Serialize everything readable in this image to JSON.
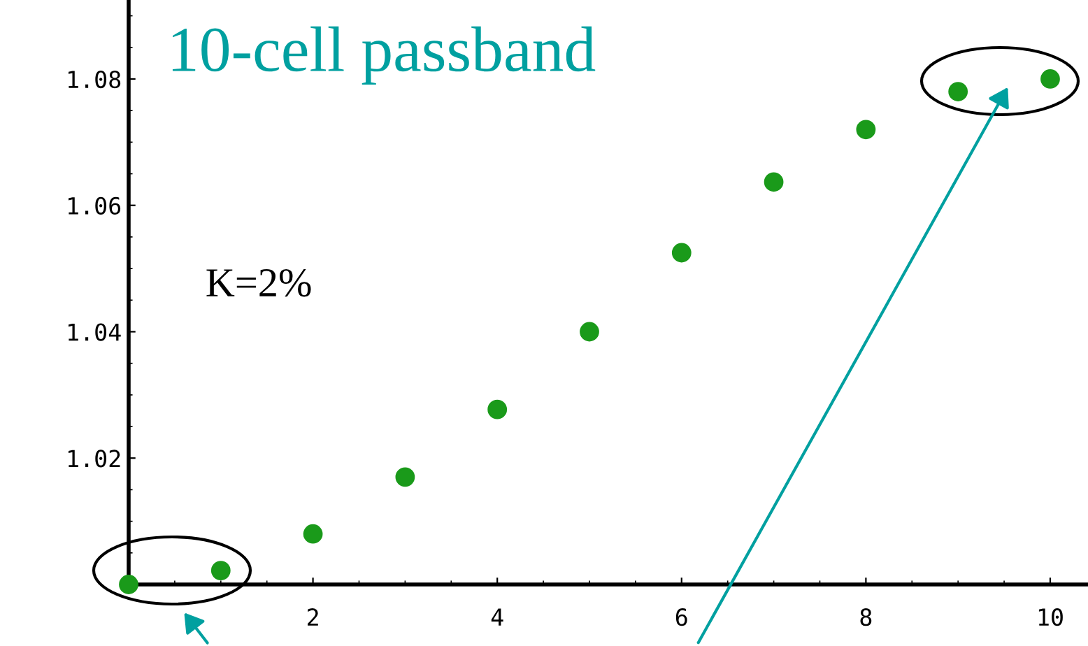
{
  "chart_data": {
    "type": "scatter",
    "annotations": [
      "10-cell passband",
      "K=2%"
    ],
    "x": [
      0,
      1,
      2,
      3,
      4,
      5,
      6,
      7,
      8,
      9,
      10
    ],
    "series": [
      {
        "color": "#1a9a1a",
        "values": [
          1.0,
          1.0022,
          1.008,
          1.017,
          1.0277,
          1.04,
          1.0525,
          1.0637,
          1.072,
          1.078,
          1.08
        ]
      }
    ],
    "xlim": [
      0,
      10.41
    ],
    "ylim": [
      1.0,
      1.0925
    ],
    "xticks": [
      2,
      4,
      6,
      8,
      10
    ],
    "yticks": [
      1.02,
      1.04,
      1.06,
      1.08
    ],
    "marker": "circle",
    "grid": false,
    "legend": false
  }
}
